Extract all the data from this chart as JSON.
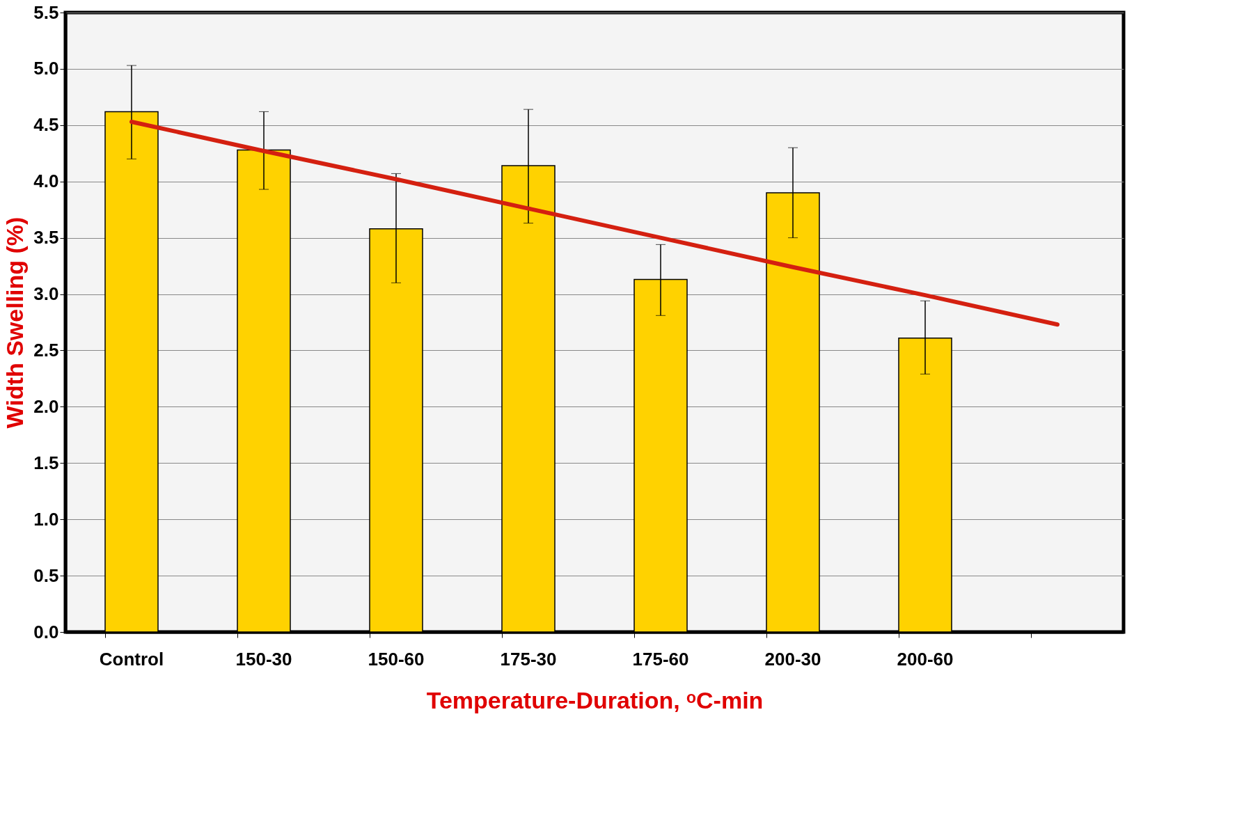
{
  "chart_data": {
    "type": "bar",
    "xlabel": "Temperature-Duration, ᵒC-min",
    "ylabel": "Width Swelling (%)",
    "categories": [
      "Control",
      "150-30",
      "150-60",
      "175-30",
      "175-60",
      "200-30",
      "200-60",
      null
    ],
    "series": [
      {
        "color": "#ffd200",
        "values": [
          4.62,
          4.28,
          3.58,
          4.14,
          3.13,
          3.9,
          2.61,
          null
        ],
        "errors": [
          [
            4.2,
            5.03
          ],
          [
            3.93,
            4.62
          ],
          [
            3.1,
            4.07
          ],
          [
            3.63,
            4.64
          ],
          [
            2.81,
            3.44
          ],
          [
            3.5,
            4.3
          ],
          [
            2.29,
            2.94
          ],
          null
        ]
      },
      {
        "type": "line",
        "color": "#d42010",
        "values": [
          4.53,
          4.27,
          4.02,
          3.76,
          3.5,
          3.24,
          2.99,
          2.73
        ]
      }
    ],
    "ylim": [
      0,
      5.5
    ],
    "yticks": [
      {
        "value": 0,
        "label": "0.0"
      },
      {
        "value": 0.5,
        "label": "0.5"
      },
      {
        "value": 1,
        "label": "1.0"
      },
      {
        "value": 1.5,
        "label": "1.5"
      },
      {
        "value": 2,
        "label": "2.0"
      },
      {
        "value": 2.5,
        "label": "2.5"
      },
      {
        "value": 3,
        "label": "3.0"
      },
      {
        "value": 3.5,
        "label": "3.5"
      },
      {
        "value": 4,
        "label": "4.0"
      },
      {
        "value": 4.5,
        "label": "4.5"
      },
      {
        "value": 5,
        "label": "5.0"
      },
      {
        "value": 5.5,
        "label": "5.5"
      }
    ],
    "grid": "y"
  }
}
